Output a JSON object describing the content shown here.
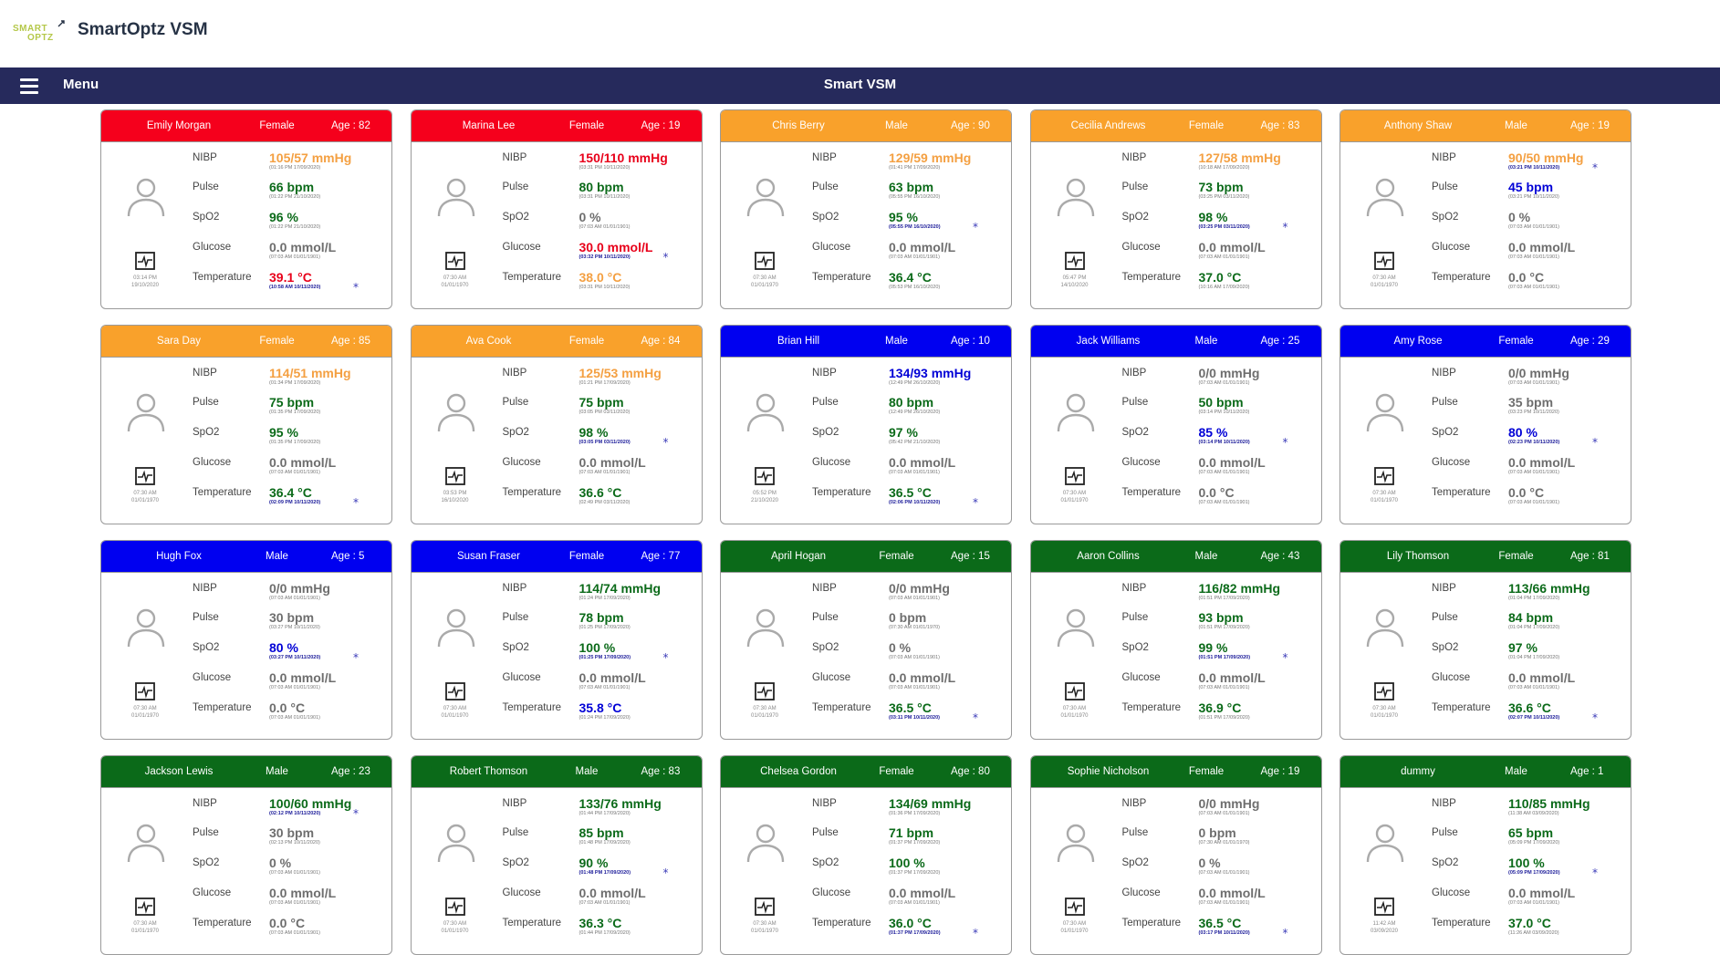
{
  "app": {
    "title": "SmartOptz VSM",
    "logo_top": "SMART",
    "logo_bottom": "OPTZ"
  },
  "nav": {
    "menu_label": "Menu",
    "title": "Smart VSM"
  },
  "labels": {
    "nibp": "NIBP",
    "pulse": "Pulse",
    "spo2": "SpO2",
    "glucose": "Glucose",
    "temperature": "Temperature"
  },
  "colors": {
    "red": "#f5001c",
    "orange": "#f9a12b",
    "blue": "#0000f0",
    "green": "#0b6a19",
    "val_orange": "#f4a042",
    "val_red": "#e8001a",
    "val_green": "#0b6a19",
    "val_blue": "#0000d6",
    "val_grey": "#6e6e6e"
  },
  "patients": [
    {
      "name": "Emily Morgan",
      "gender": "Female",
      "age": "Age : 82",
      "header": "red",
      "mon_time": "03:14 PM",
      "mon_date": "19/10/2020",
      "nibp": {
        "v": "105/57 mmHg",
        "c": "orange",
        "t": "(01:16 PM 17/09/2020)"
      },
      "pulse": {
        "v": "66 bpm",
        "c": "green",
        "t": "(01:22 PM 21/10/2020)"
      },
      "spo2": {
        "v": "96 %",
        "c": "green",
        "t": "(01:22 PM 21/10/2020)"
      },
      "glucose": {
        "v": "0.0 mmol/L",
        "c": "grey",
        "t": "(07:03 AM 01/01/1901)"
      },
      "temp": {
        "v": "39.1 °C",
        "c": "red",
        "t": "(10:58 AM 10/11/2020)",
        "star": true
      }
    },
    {
      "name": "Marina Lee",
      "gender": "Female",
      "age": "Age : 19",
      "header": "red",
      "mon_time": "07:30 AM",
      "mon_date": "01/01/1970",
      "nibp": {
        "v": "150/110 mmHg",
        "c": "red",
        "t": "(03:31 PM 10/11/2020)"
      },
      "pulse": {
        "v": "80 bpm",
        "c": "green",
        "t": "(03:31 PM 10/11/2020)"
      },
      "spo2": {
        "v": "0 %",
        "c": "grey",
        "t": "(07:03 AM 01/01/1901)"
      },
      "glucose": {
        "v": "30.0 mmol/L",
        "c": "red",
        "t": "(03:32 PM 10/11/2020)",
        "star": true
      },
      "temp": {
        "v": "38.0 °C",
        "c": "orange",
        "t": "(03:31 PM 10/11/2020)"
      }
    },
    {
      "name": "Chris Berry",
      "gender": "Male",
      "age": "Age : 90",
      "header": "orange",
      "mon_time": "07:30 AM",
      "mon_date": "01/01/1970",
      "nibp": {
        "v": "129/59 mmHg",
        "c": "orange",
        "t": "(01:41 PM 17/09/2020)"
      },
      "pulse": {
        "v": "63 bpm",
        "c": "green",
        "t": "(05:55 PM 16/10/2020)"
      },
      "spo2": {
        "v": "95 %",
        "c": "green",
        "t": "(05:55 PM 16/10/2020)",
        "star": true
      },
      "glucose": {
        "v": "0.0 mmol/L",
        "c": "grey",
        "t": "(07:03 AM 01/01/1901)"
      },
      "temp": {
        "v": "36.4 °C",
        "c": "green",
        "t": "(05:53 PM 16/10/2020)"
      }
    },
    {
      "name": "Cecilia Andrews",
      "gender": "Female",
      "age": "Age : 83",
      "header": "orange",
      "mon_time": "05:47 PM",
      "mon_date": "14/10/2020",
      "nibp": {
        "v": "127/58 mmHg",
        "c": "orange",
        "t": "(10:18 AM 17/09/2020)"
      },
      "pulse": {
        "v": "73 bpm",
        "c": "green",
        "t": "(03:25 PM 03/11/2020)"
      },
      "spo2": {
        "v": "98 %",
        "c": "green",
        "t": "(03:25 PM 03/11/2020)",
        "star": true
      },
      "glucose": {
        "v": "0.0 mmol/L",
        "c": "grey",
        "t": "(07:03 AM 01/01/1901)"
      },
      "temp": {
        "v": "37.0 °C",
        "c": "green",
        "t": "(10:16 AM 17/09/2020)"
      }
    },
    {
      "name": "Anthony Shaw",
      "gender": "Male",
      "age": "Age : 19",
      "header": "orange",
      "mon_time": "07:30 AM",
      "mon_date": "01/01/1970",
      "nibp": {
        "v": "90/50 mmHg",
        "c": "orange",
        "t": "(03:21 PM 10/11/2020)",
        "star": true
      },
      "pulse": {
        "v": "45 bpm",
        "c": "blue",
        "t": "(03:21 PM 10/11/2020)"
      },
      "spo2": {
        "v": "0 %",
        "c": "grey",
        "t": "(07:03 AM 01/01/1901)"
      },
      "glucose": {
        "v": "0.0 mmol/L",
        "c": "grey",
        "t": "(07:03 AM 01/01/1901)"
      },
      "temp": {
        "v": "0.0 °C",
        "c": "grey",
        "t": "(07:03 AM 01/01/1901)"
      }
    },
    {
      "name": "Sara Day",
      "gender": "Female",
      "age": "Age : 85",
      "header": "orange",
      "mon_time": "07:30 AM",
      "mon_date": "01/01/1970",
      "nibp": {
        "v": "114/51 mmHg",
        "c": "orange",
        "t": "(01:34 PM 17/09/2020)"
      },
      "pulse": {
        "v": "75 bpm",
        "c": "green",
        "t": "(01:35 PM 17/09/2020)"
      },
      "spo2": {
        "v": "95 %",
        "c": "green",
        "t": "(01:35 PM 17/09/2020)"
      },
      "glucose": {
        "v": "0.0 mmol/L",
        "c": "grey",
        "t": "(07:03 AM 01/01/1901)"
      },
      "temp": {
        "v": "36.4 °C",
        "c": "green",
        "t": "(02:09 PM 10/11/2020)",
        "star": true
      }
    },
    {
      "name": "Ava Cook",
      "gender": "Female",
      "age": "Age : 84",
      "header": "orange",
      "mon_time": "03:53 PM",
      "mon_date": "16/10/2020",
      "nibp": {
        "v": "125/53 mmHg",
        "c": "orange",
        "t": "(01:21 PM 17/09/2020)"
      },
      "pulse": {
        "v": "75 bpm",
        "c": "green",
        "t": "(03:05 PM 03/11/2020)"
      },
      "spo2": {
        "v": "98 %",
        "c": "green",
        "t": "(03:05 PM 03/11/2020)",
        "star": true
      },
      "glucose": {
        "v": "0.0 mmol/L",
        "c": "grey",
        "t": "(07:03 AM 01/01/1901)"
      },
      "temp": {
        "v": "36.6 °C",
        "c": "green",
        "t": "(02:49 PM 03/11/2020)"
      }
    },
    {
      "name": "Brian Hill",
      "gender": "Male",
      "age": "Age : 10",
      "header": "blue",
      "mon_time": "05:52 PM",
      "mon_date": "21/10/2020",
      "nibp": {
        "v": "134/93 mmHg",
        "c": "blue",
        "t": "(12:49 PM 26/10/2020)"
      },
      "pulse": {
        "v": "80 bpm",
        "c": "green",
        "t": "(12:49 PM 26/10/2020)"
      },
      "spo2": {
        "v": "97 %",
        "c": "green",
        "t": "(05:42 PM 21/10/2020)"
      },
      "glucose": {
        "v": "0.0 mmol/L",
        "c": "grey",
        "t": "(07:03 AM 01/01/1901)"
      },
      "temp": {
        "v": "36.5 °C",
        "c": "green",
        "t": "(02:06 PM 10/11/2020)",
        "star": true
      }
    },
    {
      "name": "Jack Williams",
      "gender": "Male",
      "age": "Age : 25",
      "header": "blue",
      "mon_time": "07:30 AM",
      "mon_date": "01/01/1970",
      "nibp": {
        "v": "0/0 mmHg",
        "c": "grey",
        "t": "(07:03 AM 01/01/1901)"
      },
      "pulse": {
        "v": "50 bpm",
        "c": "green",
        "t": "(03:14 PM 10/11/2020)"
      },
      "spo2": {
        "v": "85 %",
        "c": "blue",
        "t": "(03:14 PM 10/11/2020)",
        "star": true
      },
      "glucose": {
        "v": "0.0 mmol/L",
        "c": "grey",
        "t": "(07:03 AM 01/01/1901)"
      },
      "temp": {
        "v": "0.0 °C",
        "c": "grey",
        "t": "(07:03 AM 01/01/1901)"
      }
    },
    {
      "name": "Amy Rose",
      "gender": "Female",
      "age": "Age : 29",
      "header": "blue",
      "mon_time": "07:30 AM",
      "mon_date": "01/01/1970",
      "nibp": {
        "v": "0/0 mmHg",
        "c": "grey",
        "t": "(07:03 AM 01/01/1901)"
      },
      "pulse": {
        "v": "35 bpm",
        "c": "grey",
        "t": "(03:23 PM 10/11/2020)"
      },
      "spo2": {
        "v": "80 %",
        "c": "blue",
        "t": "(02:23 PM 10/11/2020)",
        "star": true
      },
      "glucose": {
        "v": "0.0 mmol/L",
        "c": "grey",
        "t": "(07:03 AM 01/01/1901)"
      },
      "temp": {
        "v": "0.0 °C",
        "c": "grey",
        "t": "(07:03 AM 01/01/1901)"
      }
    },
    {
      "name": "Hugh Fox",
      "gender": "Male",
      "age": "Age : 5",
      "header": "blue",
      "mon_time": "07:30 AM",
      "mon_date": "01/01/1970",
      "nibp": {
        "v": "0/0 mmHg",
        "c": "grey",
        "t": "(07:03 AM 01/01/1901)"
      },
      "pulse": {
        "v": "30 bpm",
        "c": "grey",
        "t": "(03:27 PM 10/11/2020)"
      },
      "spo2": {
        "v": "80 %",
        "c": "blue",
        "t": "(03:27 PM 10/11/2020)",
        "star": true
      },
      "glucose": {
        "v": "0.0 mmol/L",
        "c": "grey",
        "t": "(07:03 AM 01/01/1901)"
      },
      "temp": {
        "v": "0.0 °C",
        "c": "grey",
        "t": "(07:03 AM 01/01/1901)"
      }
    },
    {
      "name": "Susan Fraser",
      "gender": "Female",
      "age": "Age : 77",
      "header": "blue",
      "mon_time": "07:30 AM",
      "mon_date": "01/01/1970",
      "nibp": {
        "v": "114/74 mmHg",
        "c": "green",
        "t": "(01:24 PM 17/09/2020)"
      },
      "pulse": {
        "v": "78 bpm",
        "c": "green",
        "t": "(01:25 PM 17/09/2020)"
      },
      "spo2": {
        "v": "100 %",
        "c": "green",
        "t": "(01:25 PM 17/09/2020)",
        "star": true
      },
      "glucose": {
        "v": "0.0 mmol/L",
        "c": "grey",
        "t": "(07:03 AM 01/01/1901)"
      },
      "temp": {
        "v": "35.8 °C",
        "c": "blue",
        "t": "(01:24 PM 17/09/2020)"
      }
    },
    {
      "name": "April Hogan",
      "gender": "Female",
      "age": "Age : 15",
      "header": "green",
      "mon_time": "07:30 AM",
      "mon_date": "01/01/1970",
      "nibp": {
        "v": "0/0 mmHg",
        "c": "grey",
        "t": "(07:03 AM 01/01/1901)"
      },
      "pulse": {
        "v": "0 bpm",
        "c": "grey",
        "t": "(07:30 AM 01/01/1970)"
      },
      "spo2": {
        "v": "0 %",
        "c": "grey",
        "t": "(07:03 AM 01/01/1901)"
      },
      "glucose": {
        "v": "0.0 mmol/L",
        "c": "grey",
        "t": "(07:03 AM 01/01/1901)"
      },
      "temp": {
        "v": "36.5 °C",
        "c": "green",
        "t": "(03:11 PM 10/11/2020)",
        "star": true
      }
    },
    {
      "name": "Aaron Collins",
      "gender": "Male",
      "age": "Age : 43",
      "header": "green",
      "mon_time": "07:30 AM",
      "mon_date": "01/01/1970",
      "nibp": {
        "v": "116/82 mmHg",
        "c": "green",
        "t": "(01:51 PM 17/09/2020)"
      },
      "pulse": {
        "v": "93 bpm",
        "c": "green",
        "t": "(01:51 PM 17/09/2020)"
      },
      "spo2": {
        "v": "99 %",
        "c": "green",
        "t": "(01:51 PM 17/09/2020)",
        "star": true
      },
      "glucose": {
        "v": "0.0 mmol/L",
        "c": "grey",
        "t": "(07:03 AM 01/01/1901)"
      },
      "temp": {
        "v": "36.9 °C",
        "c": "green",
        "t": "(01:51 PM 17/09/2020)"
      }
    },
    {
      "name": "Lily Thomson",
      "gender": "Female",
      "age": "Age : 81",
      "header": "green",
      "mon_time": "07:30 AM",
      "mon_date": "01/01/1970",
      "nibp": {
        "v": "113/66 mmHg",
        "c": "green",
        "t": "(01:04 PM 17/09/2020)"
      },
      "pulse": {
        "v": "84 bpm",
        "c": "green",
        "t": "(01:04 PM 17/09/2020)"
      },
      "spo2": {
        "v": "97 %",
        "c": "green",
        "t": "(01:04 PM 17/09/2020)"
      },
      "glucose": {
        "v": "0.0 mmol/L",
        "c": "grey",
        "t": "(07:03 AM 01/01/1901)"
      },
      "temp": {
        "v": "36.6 °C",
        "c": "green",
        "t": "(02:07 PM 10/11/2020)",
        "star": true
      }
    },
    {
      "name": "Jackson Lewis",
      "gender": "Male",
      "age": "Age : 23",
      "header": "green",
      "mon_time": "07:30 AM",
      "mon_date": "01/01/1970",
      "nibp": {
        "v": "100/60 mmHg",
        "c": "green",
        "t": "(02:12 PM 10/11/2020)",
        "star": true
      },
      "pulse": {
        "v": "30 bpm",
        "c": "grey",
        "t": "(02:13 PM 10/11/2020)"
      },
      "spo2": {
        "v": "0 %",
        "c": "grey",
        "t": "(07:03 AM 01/01/1901)"
      },
      "glucose": {
        "v": "0.0 mmol/L",
        "c": "grey",
        "t": "(07:03 AM 01/01/1901)"
      },
      "temp": {
        "v": "0.0 °C",
        "c": "grey",
        "t": "(07:03 AM 01/01/1901)"
      }
    },
    {
      "name": "Robert Thomson",
      "gender": "Male",
      "age": "Age : 83",
      "header": "green",
      "mon_time": "07:30 AM",
      "mon_date": "01/01/1970",
      "nibp": {
        "v": "133/76 mmHg",
        "c": "green",
        "t": "(01:44 PM 17/09/2020)"
      },
      "pulse": {
        "v": "85 bpm",
        "c": "green",
        "t": "(01:48 PM 17/09/2020)"
      },
      "spo2": {
        "v": "90 %",
        "c": "green",
        "t": "(01:48 PM 17/09/2020)",
        "star": true
      },
      "glucose": {
        "v": "0.0 mmol/L",
        "c": "grey",
        "t": "(07:03 AM 01/01/1901)"
      },
      "temp": {
        "v": "36.3 °C",
        "c": "green",
        "t": "(01:44 PM 17/09/2020)"
      }
    },
    {
      "name": "Chelsea Gordon",
      "gender": "Female",
      "age": "Age : 80",
      "header": "green",
      "mon_time": "07:30 AM",
      "mon_date": "01/01/1970",
      "nibp": {
        "v": "134/69 mmHg",
        "c": "green",
        "t": "(01:36 PM 17/09/2020)"
      },
      "pulse": {
        "v": "71 bpm",
        "c": "green",
        "t": "(01:37 PM 17/09/2020)"
      },
      "spo2": {
        "v": "100 %",
        "c": "green",
        "t": "(01:37 PM 17/09/2020)"
      },
      "glucose": {
        "v": "0.0 mmol/L",
        "c": "grey",
        "t": "(07:03 AM 01/01/1901)"
      },
      "temp": {
        "v": "36.0 °C",
        "c": "green",
        "t": "(01:37 PM 17/09/2020)",
        "star": true
      }
    },
    {
      "name": "Sophie Nicholson",
      "gender": "Female",
      "age": "Age : 19",
      "header": "green",
      "mon_time": "07:30 AM",
      "mon_date": "01/01/1970",
      "nibp": {
        "v": "0/0 mmHg",
        "c": "grey",
        "t": "(07:03 AM 01/01/1901)"
      },
      "pulse": {
        "v": "0 bpm",
        "c": "grey",
        "t": "(07:30 AM 01/01/1970)"
      },
      "spo2": {
        "v": "0 %",
        "c": "grey",
        "t": "(07:03 AM 01/01/1901)"
      },
      "glucose": {
        "v": "0.0 mmol/L",
        "c": "grey",
        "t": "(07:03 AM 01/01/1901)"
      },
      "temp": {
        "v": "36.5 °C",
        "c": "green",
        "t": "(03:17 PM 10/11/2020)",
        "star": true
      }
    },
    {
      "name": "dummy",
      "gender": "Male",
      "age": "Age : 1",
      "header": "green",
      "mon_time": "11:42 AM",
      "mon_date": "03/09/2020",
      "nibp": {
        "v": "110/85 mmHg",
        "c": "green",
        "t": "(11:38 AM 03/09/2020)"
      },
      "pulse": {
        "v": "65 bpm",
        "c": "green",
        "t": "(05:09 PM 17/09/2020)"
      },
      "spo2": {
        "v": "100 %",
        "c": "green",
        "t": "(05:09 PM 17/09/2020)",
        "star": true
      },
      "glucose": {
        "v": "0.0 mmol/L",
        "c": "grey",
        "t": "(07:03 AM 01/01/1901)"
      },
      "temp": {
        "v": "37.0 °C",
        "c": "green",
        "t": "(11:26 AM 03/09/2020)"
      }
    }
  ]
}
